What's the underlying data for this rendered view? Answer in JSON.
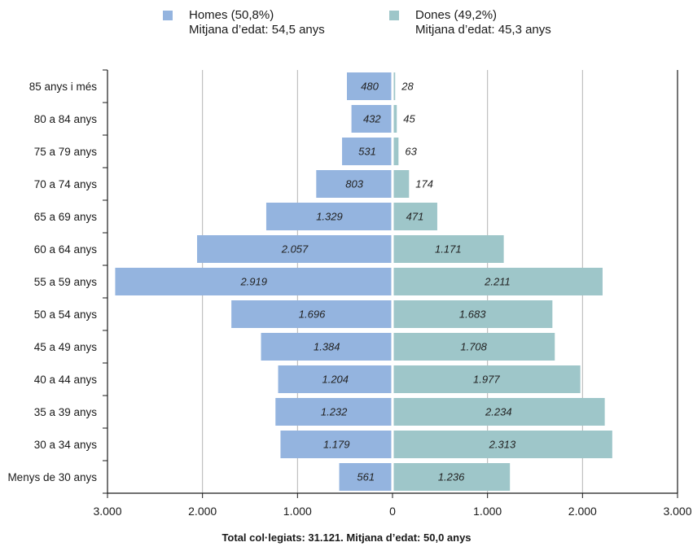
{
  "legend": {
    "men_label": "Homes (50,8%)",
    "men_sub": "Mitjana d’edat: 54,5 anys",
    "women_label": "Dones (49,2%)",
    "women_sub": "Mitjana d’edat: 45,3 anys"
  },
  "footer": "Total col·legiats: 31.121.  Mitjana d’edat: 50,0 anys",
  "colors": {
    "men": "#94b4df",
    "women": "#9ec6c9",
    "grid": "#b3b3b3",
    "axis": "#1a1a1a"
  },
  "chart_data": {
    "type": "bar",
    "orientation": "horizontal-population-pyramid",
    "categories": [
      "85 anys i més",
      "80 a 84 anys",
      "75 a 79 anys",
      "70 a 74 anys",
      "65 a 69 anys",
      "60 a 64 anys",
      "55 a 59 anys",
      "50 a 54 anys",
      "45 a 49 anys",
      "40 a 44 anys",
      "35 a 39 anys",
      "30 a 34 anys",
      "Menys de 30 anys"
    ],
    "series": [
      {
        "name": "Homes (50,8%)",
        "values": [
          480,
          432,
          531,
          803,
          1329,
          2057,
          2919,
          1696,
          1384,
          1204,
          1232,
          1179,
          561
        ],
        "labels": [
          "480",
          "432",
          "531",
          "803",
          "1.329",
          "2.057",
          "2.919",
          "1.696",
          "1.384",
          "1.204",
          "1.232",
          "1.179",
          "561"
        ]
      },
      {
        "name": "Dones (49,2%)",
        "values": [
          28,
          45,
          63,
          174,
          471,
          1171,
          2211,
          1683,
          1708,
          1977,
          2234,
          2313,
          1236
        ],
        "labels": [
          "28",
          "45",
          "63",
          "174",
          "471",
          "1.171",
          "2.211",
          "1.683",
          "1.708",
          "1.977",
          "2.234",
          "2.313",
          "1.236"
        ]
      }
    ],
    "xlim": [
      -3000,
      3000
    ],
    "xticks": [
      -3000,
      -2000,
      -1000,
      0,
      1000,
      2000,
      3000
    ],
    "xtick_labels": [
      "3.000",
      "2.000",
      "1.000",
      "0",
      "1.000",
      "2.000",
      "3.000"
    ],
    "grid": true,
    "legend_position": "top"
  }
}
